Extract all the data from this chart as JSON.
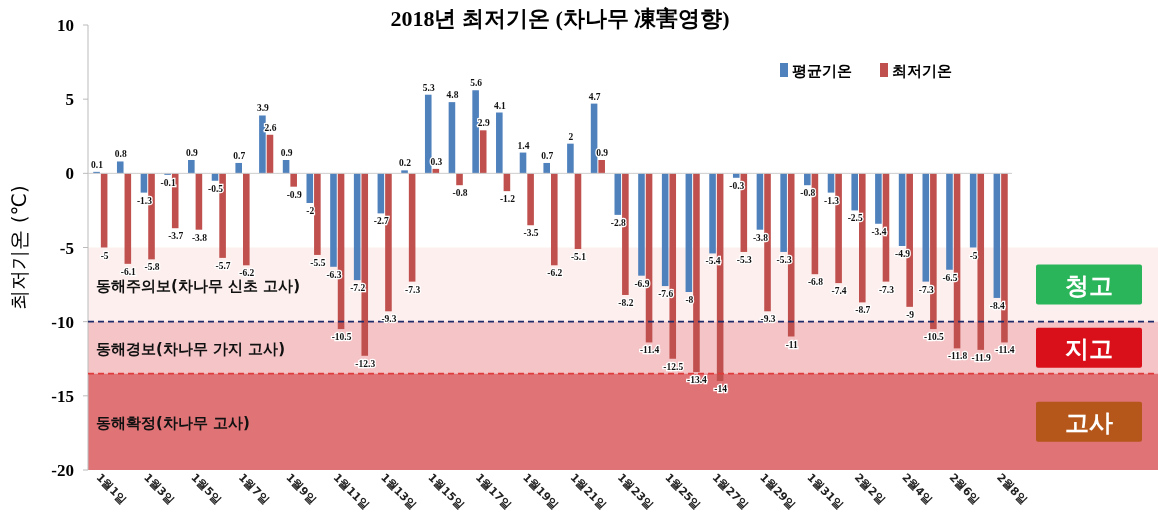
{
  "chart_data": {
    "type": "bar",
    "title": "2018년 최저기온 (차나무 凍害영향)",
    "ylabel": "최저기온 (℃)",
    "categories": [
      "1월1일",
      null,
      "1월3일",
      null,
      "1월5일",
      null,
      "1월7일",
      null,
      "1월9일",
      null,
      "1월11일",
      null,
      "1월13일",
      null,
      "1월15일",
      null,
      "1월17일",
      null,
      "1월19일",
      null,
      "1월21일",
      null,
      "1월23일",
      null,
      "1월25일",
      null,
      "1월27일",
      null,
      "1월29일",
      null,
      "1월31일",
      null,
      "2월2일",
      null,
      "2월4일",
      null,
      "2월6일",
      null,
      "2월8일"
    ],
    "series": [
      {
        "name": "평균기온",
        "color": "#4f81bd",
        "values": [
          0.1,
          0.8,
          -1.3,
          -0.1,
          0.9,
          -0.5,
          0.7,
          3.9,
          0.9,
          -2.0,
          -6.3,
          -7.2,
          -2.7,
          0.2,
          5.3,
          4.8,
          5.6,
          4.1,
          1.4,
          0.7,
          2,
          4.7,
          -2.8,
          -6.9,
          -7.6,
          -8,
          -5.4,
          -0.3,
          -3.8,
          -5.3,
          -0.8,
          -1.3,
          -2.5,
          -3.4,
          -4.9,
          -7.3,
          -6.5,
          -5,
          -8.4
        ]
      },
      {
        "name": "최저기온",
        "color": "#c0504d",
        "values": [
          -5,
          -6.1,
          -5.8,
          -3.7,
          -3.8,
          -5.7,
          -6.2,
          2.6,
          -0.9,
          -5.5,
          -10.5,
          -12.3,
          -9.3,
          -7.3,
          0.3,
          -0.8,
          2.9,
          -1.2,
          -3.5,
          -6.2,
          -5.1,
          0.9,
          -8.2,
          -11.4,
          -12.5,
          -13.4,
          -14,
          -5.3,
          -9.3,
          -11,
          -6.8,
          -7.4,
          -8.7,
          -7.3,
          -9,
          -10.5,
          -11.8,
          -11.9,
          -11.4
        ]
      }
    ],
    "ylim": [
      -20,
      10
    ],
    "yticks": [
      -20,
      -15,
      -10,
      -5,
      0,
      5,
      10
    ],
    "data_labels": true,
    "legend": "top right",
    "bands": [
      {
        "axis": "y",
        "from": -5,
        "to": -10,
        "label": "동해주의보(차나무 신초 고사)",
        "color": "#fcefee"
      },
      {
        "axis": "y",
        "from": -10,
        "to": -13.5,
        "label": "동해경보(차나무 가지 고사)",
        "color": "#f4c4c7"
      },
      {
        "axis": "y",
        "from": -13.5,
        "to": -20,
        "label": "동해확정(차나무 고사)",
        "color": "#e07376"
      }
    ],
    "ref_lines": [
      {
        "axis": "y",
        "value": -10,
        "color": "#1f2a6b",
        "line_style": "dashed"
      },
      {
        "axis": "y",
        "value": -13.5,
        "color": "#e03a3a",
        "line_style": "dashed"
      }
    ],
    "annotations": [
      "청고",
      "지고",
      "고사"
    ]
  }
}
